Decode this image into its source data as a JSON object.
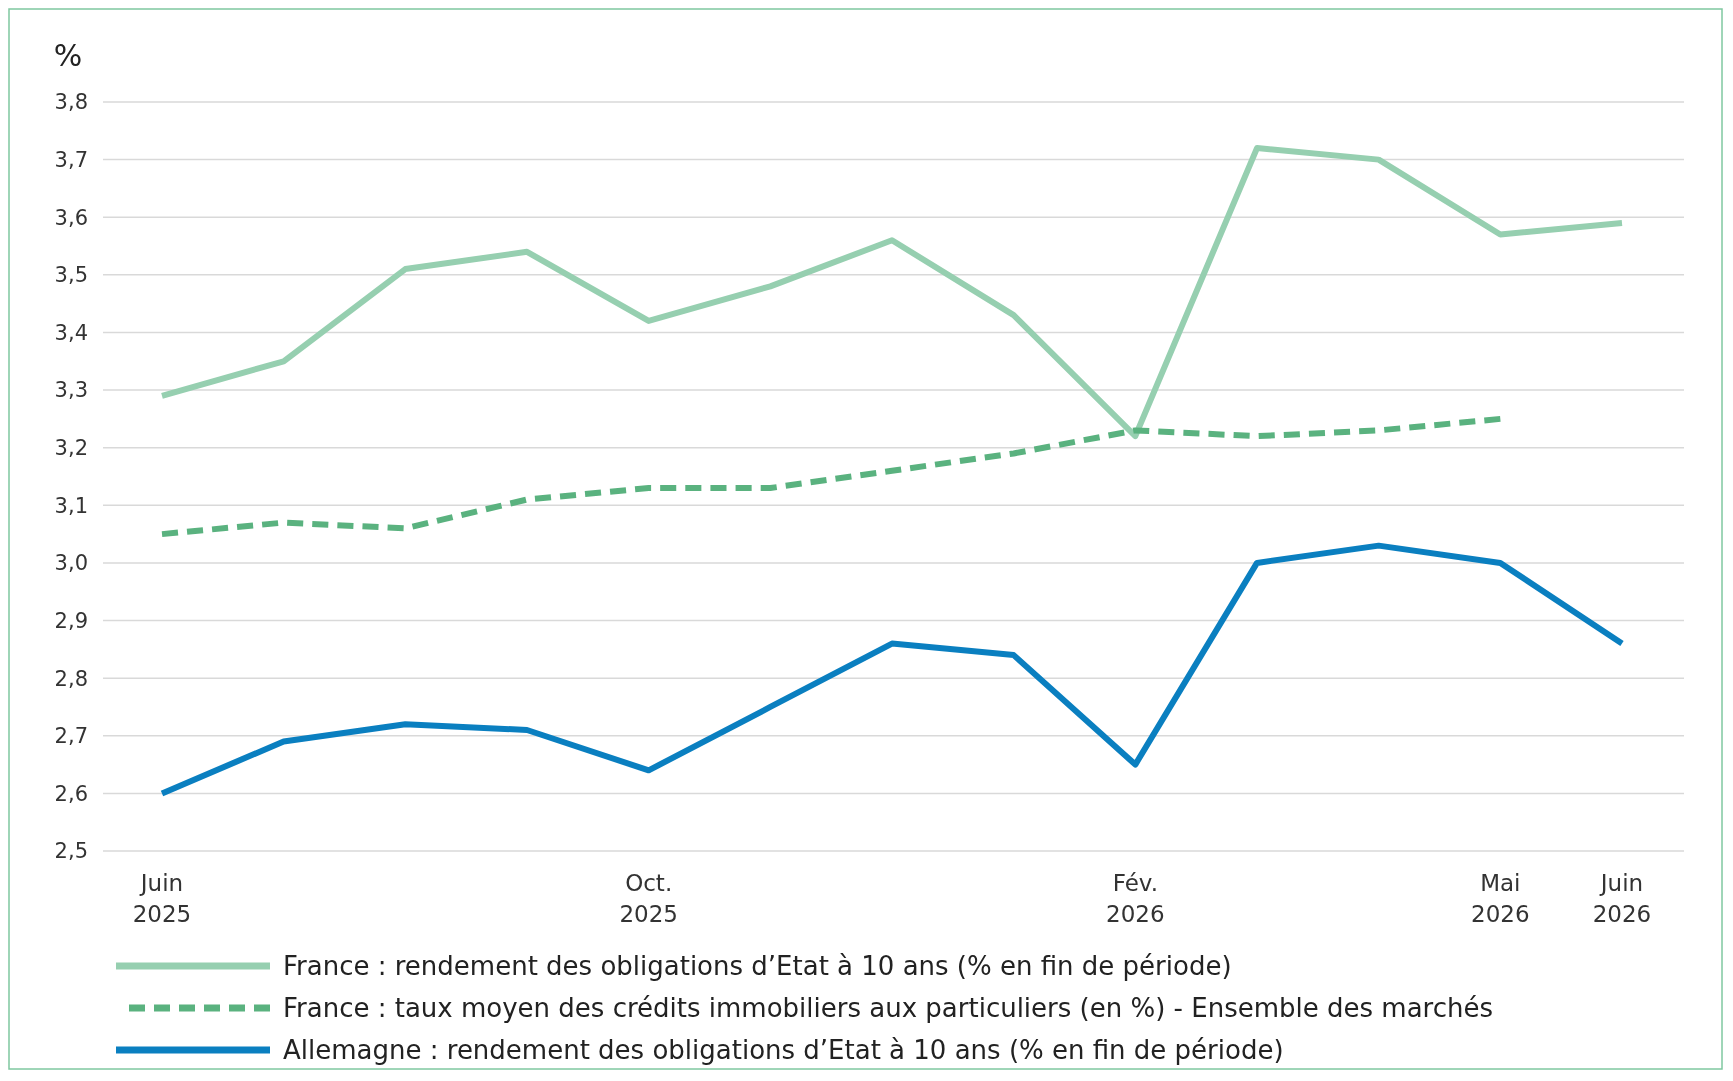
{
  "chart_data": {
    "type": "line",
    "ylabel": "%",
    "categories": [
      "Juin\n2025",
      null,
      null,
      null,
      "Oct.\n2025",
      null,
      null,
      null,
      "Fév.\n2026",
      null,
      null,
      "Mai\n2026",
      "Juin\n2026"
    ],
    "series": [
      {
        "name": "France : rendement des obligations d’Etat à 10 ans (% en fin de période)",
        "color": "#96cfb0",
        "line_style": "solid",
        "values": [
          3.29,
          3.35,
          3.51,
          3.54,
          3.42,
          3.48,
          3.56,
          3.43,
          3.22,
          3.72,
          3.7,
          3.57,
          3.59
        ]
      },
      {
        "name": "France : taux moyen des crédits immobiliers aux particuliers (en %) - Ensemble des marchés",
        "color": "#5ab27f",
        "line_style": "dashed",
        "values": [
          3.05,
          3.07,
          3.06,
          3.11,
          3.13,
          3.13,
          3.16,
          3.19,
          3.23,
          3.22,
          3.23,
          3.25,
          null
        ]
      },
      {
        "name": "Allemagne : rendement des obligations d’Etat à 10 ans (% en fin de période)",
        "color": "#0a7fc0",
        "line_style": "solid",
        "values": [
          2.6,
          2.69,
          2.72,
          2.71,
          2.64,
          2.75,
          2.86,
          2.84,
          2.65,
          3.0,
          3.03,
          3.0,
          2.86
        ]
      }
    ],
    "ylim": [
      2.5,
      3.8
    ],
    "yticks": [
      {
        "value": 2.5,
        "label": "2,5"
      },
      {
        "value": 2.6,
        "label": "2,6"
      },
      {
        "value": 2.7,
        "label": "2,7"
      },
      {
        "value": 2.8,
        "label": "2,8"
      },
      {
        "value": 2.9,
        "label": "2,9"
      },
      {
        "value": 3.0,
        "label": "3,0"
      },
      {
        "value": 3.1,
        "label": "3,1"
      },
      {
        "value": 3.2,
        "label": "3,2"
      },
      {
        "value": 3.3,
        "label": "3,3"
      },
      {
        "value": 3.4,
        "label": "3,4"
      },
      {
        "value": 3.5,
        "label": "3,5"
      },
      {
        "value": 3.6,
        "label": "3,6"
      },
      {
        "value": 3.7,
        "label": "3,7"
      },
      {
        "value": 3.8,
        "label": "3,8"
      }
    ],
    "grid": "y",
    "legend": "bottom"
  }
}
